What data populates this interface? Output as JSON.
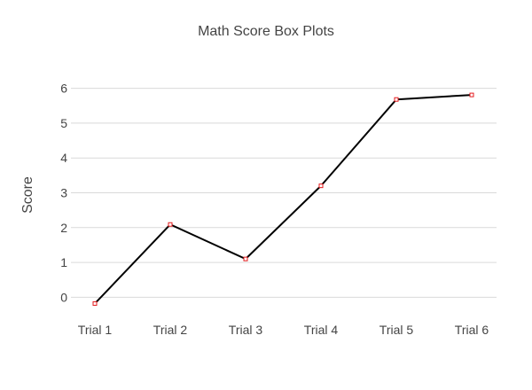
{
  "chart_data": {
    "type": "line",
    "title": "Math Score Box Plots",
    "xlabel": "",
    "ylabel": "Score",
    "categories": [
      "Trial 1",
      "Trial 2",
      "Trial 3",
      "Trial 4",
      "Trial 5",
      "Trial 6"
    ],
    "series": [
      {
        "values": [
          -0.18,
          2.09,
          1.1,
          3.2,
          5.68,
          5.81
        ],
        "color": "#000000",
        "marker_color": "#e41a1c"
      }
    ],
    "ylim": [
      -0.5,
      6.5
    ],
    "yticks": [
      0,
      1,
      2,
      3,
      4,
      5,
      6
    ],
    "grid": true,
    "legend": "none"
  }
}
